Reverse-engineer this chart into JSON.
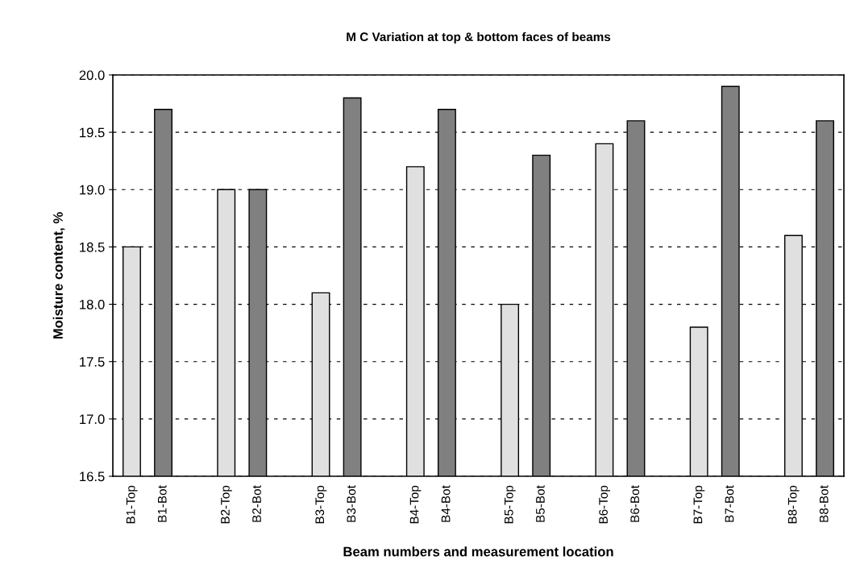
{
  "chart_data": {
    "type": "bar",
    "title": "M C Variation at top & bottom faces of beams",
    "xlabel": "Beam numbers and measurement location",
    "ylabel": "Moisture content, %",
    "categories": [
      "B1-Top",
      "B1-Bot",
      null,
      "B2-Top",
      "B2-Bot",
      null,
      "B3-Top",
      "B3-Bot",
      null,
      "B4-Top",
      "B4-Bot",
      null,
      "B5-Top",
      "B5-Bot",
      null,
      "B6-Top",
      "B6-Bot",
      null,
      "B7-Top",
      "B7-Bot",
      null,
      "B8-Top",
      "B8-Bot"
    ],
    "values": [
      18.5,
      19.7,
      null,
      19.0,
      19.0,
      null,
      18.1,
      19.8,
      null,
      19.2,
      19.7,
      null,
      18.0,
      19.3,
      null,
      19.4,
      19.6,
      null,
      17.8,
      19.9,
      null,
      18.6,
      19.6
    ],
    "colors": [
      "#e0e0e0",
      "#808080",
      "#ffffff",
      "#e0e0e0",
      "#808080",
      "#ffffff",
      "#e0e0e0",
      "#808080",
      "#ffffff",
      "#e0e0e0",
      "#808080",
      "#ffffff",
      "#e0e0e0",
      "#808080",
      "#ffffff",
      "#e0e0e0",
      "#808080",
      "#ffffff",
      "#e0e0e0",
      "#808080",
      "#ffffff",
      "#e0e0e0",
      "#808080"
    ],
    "ylim": [
      16.5,
      20.0
    ],
    "yticks": [
      {
        "value": 16.5,
        "label": "16.5"
      },
      {
        "value": 17.0,
        "label": "17.0"
      },
      {
        "value": 17.5,
        "label": "17.5"
      },
      {
        "value": 18.0,
        "label": "18.0"
      },
      {
        "value": 18.5,
        "label": "18.5"
      },
      {
        "value": 19.0,
        "label": "19.0"
      },
      {
        "value": 19.5,
        "label": "19.5"
      },
      {
        "value": 20.0,
        "label": "20.0"
      }
    ],
    "grid": "y"
  }
}
